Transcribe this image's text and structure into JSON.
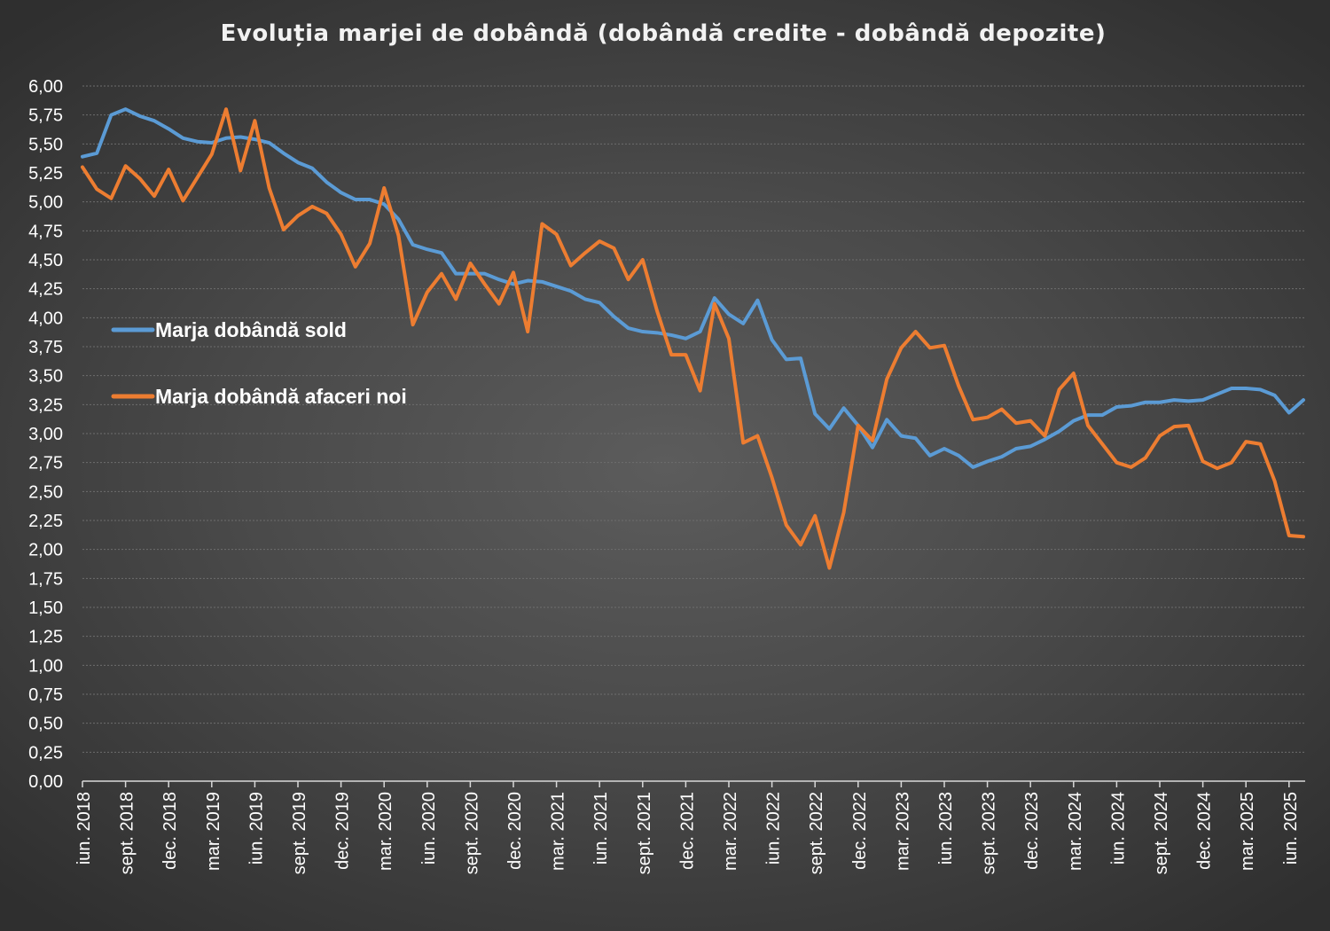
{
  "chart_data": {
    "type": "line",
    "title": "Evoluția marjei de dobândă (dobândă credite - dobândă depozite)",
    "xlabel": "",
    "ylabel": "",
    "ylim": [
      0,
      6
    ],
    "y_ticks": [
      "0,00",
      "0,25",
      "0,50",
      "0,75",
      "1,00",
      "1,25",
      "1,50",
      "1,75",
      "2,00",
      "2,25",
      "2,50",
      "2,75",
      "3,00",
      "3,25",
      "3,50",
      "3,75",
      "4,00",
      "4,25",
      "4,50",
      "4,75",
      "5,00",
      "5,25",
      "5,50",
      "5,75",
      "6,00"
    ],
    "x_tick_labels": [
      "iun. 2018",
      "sept. 2018",
      "dec. 2018",
      "mar. 2019",
      "iun. 2019",
      "sept. 2019",
      "dec. 2019",
      "mar. 2020",
      "iun. 2020",
      "sept. 2020",
      "dec. 2020",
      "mar. 2021",
      "iun. 2021",
      "sept. 2021",
      "dec. 2021",
      "mar. 2022",
      "iun. 2022",
      "sept. 2022",
      "dec. 2022",
      "mar. 2023",
      "iun. 2023",
      "sept. 2023",
      "dec. 2023",
      "mar. 2024",
      "iun. 2024",
      "sept. 2024",
      "dec. 2024",
      "mar. 2025",
      "iun. 2025"
    ],
    "grid": true,
    "legend_position": "left-middle",
    "series": [
      {
        "name": "Marja dobândă sold",
        "color": "#5b9bd5",
        "values": [
          5.39,
          5.42,
          5.75,
          5.8,
          5.74,
          5.7,
          5.63,
          5.55,
          5.52,
          5.51,
          5.55,
          5.56,
          5.54,
          5.51,
          5.42,
          5.34,
          5.29,
          5.17,
          5.08,
          5.02,
          5.02,
          4.98,
          4.85,
          4.63,
          4.59,
          4.56,
          4.38,
          4.38,
          4.38,
          4.33,
          4.29,
          4.32,
          4.31,
          4.27,
          4.23,
          4.16,
          4.13,
          4.01,
          3.91,
          3.88,
          3.87,
          3.85,
          3.82,
          3.88,
          4.17,
          4.03,
          3.95,
          4.15,
          3.81,
          3.64,
          3.65,
          3.17,
          3.04,
          3.22,
          3.07,
          2.88,
          3.12,
          2.98,
          2.96,
          2.81,
          2.87,
          2.81,
          2.71,
          2.76,
          2.8,
          2.87,
          2.89,
          2.95,
          3.02,
          3.11,
          3.16,
          3.16,
          3.23,
          3.24,
          3.27,
          3.27,
          3.29,
          3.28,
          3.29,
          3.34,
          3.39,
          3.39,
          3.38,
          3.33,
          3.18,
          3.29
        ]
      },
      {
        "name": "Marja dobândă afaceri noi",
        "color": "#ed7d31",
        "values": [
          5.3,
          5.11,
          5.03,
          5.31,
          5.2,
          5.05,
          5.28,
          5.01,
          5.21,
          5.41,
          5.8,
          5.27,
          5.7,
          5.12,
          4.76,
          4.88,
          4.96,
          4.9,
          4.72,
          4.44,
          4.64,
          5.12,
          4.71,
          3.94,
          4.22,
          4.38,
          4.16,
          4.47,
          4.29,
          4.12,
          4.39,
          3.88,
          4.81,
          4.72,
          4.45,
          4.56,
          4.66,
          4.6,
          4.33,
          4.5,
          4.06,
          3.68,
          3.68,
          3.37,
          4.12,
          3.82,
          2.92,
          2.98,
          2.62,
          2.21,
          2.04,
          2.29,
          1.84,
          2.32,
          3.07,
          2.94,
          3.47,
          3.74,
          3.88,
          3.74,
          3.76,
          3.41,
          3.12,
          3.14,
          3.21,
          3.09,
          3.11,
          2.98,
          3.38,
          3.52,
          3.07,
          2.91,
          2.75,
          2.71,
          2.79,
          2.98,
          3.06,
          3.07,
          2.76,
          2.7,
          2.75,
          2.93,
          2.91,
          2.59,
          2.12,
          2.11
        ]
      }
    ]
  }
}
